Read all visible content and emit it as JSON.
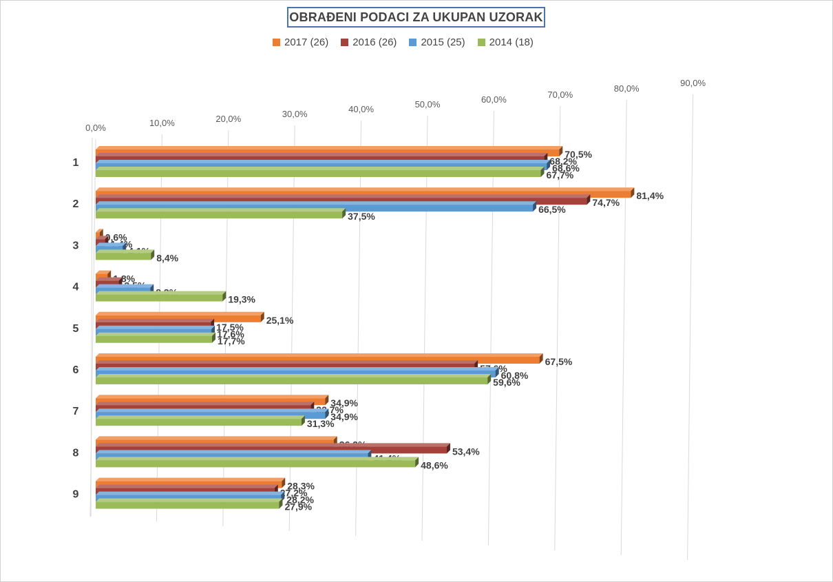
{
  "chart_data": {
    "type": "bar",
    "orientation": "horizontal",
    "style": "3d",
    "title": "OBRAĐENI PODACI ZA UKUPAN UZORAK",
    "categories": [
      "1",
      "2",
      "3",
      "4",
      "5",
      "6",
      "7",
      "8",
      "9"
    ],
    "series": [
      {
        "name": "2017 (26)",
        "color": "#ed7d31",
        "values": [
          70.5,
          81.4,
          0.6,
          1.8,
          25.1,
          67.5,
          34.9,
          36.2,
          28.3
        ]
      },
      {
        "name": "2016 (26)",
        "color": "#a5403a",
        "values": [
          68.2,
          74.7,
          1.4,
          3.5,
          17.5,
          57.6,
          32.7,
          53.4,
          27.2
        ]
      },
      {
        "name": "2015 (25)",
        "color": "#5b9bd5",
        "values": [
          68.6,
          66.5,
          4.1,
          8.3,
          17.6,
          60.8,
          34.9,
          41.4,
          28.2
        ]
      },
      {
        "name": "2014 (18)",
        "color": "#9bbb59",
        "values": [
          67.7,
          37.5,
          8.4,
          19.3,
          17.7,
          59.6,
          31.3,
          48.6,
          27.9
        ]
      }
    ],
    "x_ticks": [
      "0,0%",
      "10,0%",
      "20,0%",
      "30,0%",
      "40,0%",
      "50,0%",
      "60,0%",
      "70,0%",
      "80,0%",
      "90,0%"
    ],
    "xlim": [
      0,
      90
    ],
    "data_labels": [
      [
        "70,5%",
        "81,4%",
        "0,6%",
        "1,8%",
        "25,1%",
        "67,5%",
        "34,9%",
        "36,2%",
        "28,3%"
      ],
      [
        "68,2%",
        "74,7%",
        "1,4%",
        "3,5%",
        "17,5%",
        "57,6%",
        "32,7%",
        "53,4%",
        "27,2%"
      ],
      [
        "68,6%",
        "66,5%",
        "4,1%",
        "8,3%",
        "17,6%",
        "60,8%",
        "34,9%",
        "41,4%",
        "28,2%"
      ],
      [
        "67,7%",
        "37,5%",
        "8,4%",
        "19,3%",
        "17,7%",
        "59,6%",
        "31,3%",
        "48,6%",
        "27,9%"
      ]
    ],
    "legend_position": "top",
    "grid": true
  }
}
